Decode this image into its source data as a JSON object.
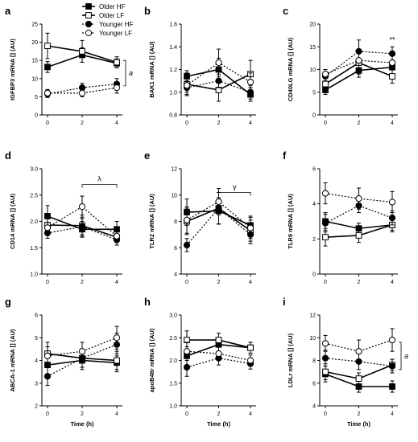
{
  "legend": [
    {
      "name": "Older HF",
      "marker": "square",
      "fill": "#000000",
      "dash": false
    },
    {
      "name": "Older LF",
      "marker": "square",
      "fill": "#ffffff",
      "dash": false
    },
    {
      "name": "Younger HF",
      "marker": "circle",
      "fill": "#000000",
      "dash": true
    },
    {
      "name": "Younger LF",
      "marker": "circle",
      "fill": "#ffffff",
      "dash": true
    }
  ],
  "colors": {
    "ink": "#000000",
    "background": "#ffffff"
  },
  "chart_data": [
    {
      "panel": "a",
      "type": "line",
      "ylabel": "IGFBP3 mRNA [] (AU)",
      "xlabel": "",
      "x": [
        0,
        2,
        4
      ],
      "xticks": [
        "0",
        "2",
        "4"
      ],
      "ylim": [
        0,
        25
      ],
      "yticks": [
        "0",
        "5",
        "10",
        "15",
        "20",
        "25"
      ],
      "series": [
        {
          "name": "Older HF",
          "values": [
            13.2,
            16.5,
            14.2
          ],
          "err": [
            1.5,
            2.0,
            1.2
          ]
        },
        {
          "name": "Older LF",
          "values": [
            19.0,
            17.5,
            14.5
          ],
          "err": [
            3.5,
            3.0,
            1.5
          ]
        },
        {
          "name": "Younger HF",
          "values": [
            5.8,
            7.5,
            8.5
          ],
          "err": [
            1.0,
            1.2,
            1.5
          ]
        },
        {
          "name": "Younger LF",
          "values": [
            6.0,
            6.0,
            7.5
          ],
          "err": [
            1.0,
            1.0,
            1.5
          ]
        }
      ],
      "annotations": [
        {
          "text": "a",
          "type": "right-bracket",
          "y": [
            8,
            15
          ]
        }
      ]
    },
    {
      "panel": "b",
      "type": "line",
      "ylabel": "BAK1 mRNA [] (AU)",
      "xlabel": "",
      "x": [
        0,
        2,
        4
      ],
      "xticks": [
        "0",
        "2",
        "4"
      ],
      "ylim": [
        0.8,
        1.6
      ],
      "yticks": [
        "0.8",
        "1.0",
        "1.2",
        "1.4",
        "1.6"
      ],
      "series": [
        {
          "name": "Older HF",
          "values": [
            1.14,
            1.2,
            0.98
          ],
          "err": [
            0.05,
            0.1,
            0.06
          ]
        },
        {
          "name": "Older LF",
          "values": [
            1.07,
            1.02,
            1.16
          ],
          "err": [
            0.1,
            0.1,
            0.12
          ]
        },
        {
          "name": "Younger HF",
          "values": [
            1.04,
            1.1,
            1.0
          ],
          "err": [
            0.06,
            0.06,
            0.06
          ]
        },
        {
          "name": "Younger LF",
          "values": [
            1.06,
            1.26,
            1.09
          ],
          "err": [
            0.06,
            0.12,
            0.08
          ]
        }
      ],
      "annotations": []
    },
    {
      "panel": "c",
      "type": "line",
      "ylabel": "CD40LG mRNA [] (AU)",
      "xlabel": "",
      "x": [
        0,
        2,
        4
      ],
      "xticks": [
        "0",
        "2",
        "4"
      ],
      "ylim": [
        0,
        20
      ],
      "yticks": [
        "0",
        "5",
        "10",
        "15",
        "20"
      ],
      "series": [
        {
          "name": "Older HF",
          "values": [
            5.5,
            9.8,
            10.5
          ],
          "err": [
            1.0,
            1.5,
            1.5
          ]
        },
        {
          "name": "Older LF",
          "values": [
            6.8,
            11.5,
            8.5
          ],
          "err": [
            1.5,
            2.5,
            1.5
          ]
        },
        {
          "name": "Younger HF",
          "values": [
            8.5,
            14.0,
            13.5
          ],
          "err": [
            1.0,
            2.5,
            1.5
          ]
        },
        {
          "name": "Younger LF",
          "values": [
            9.0,
            12.0,
            11.5
          ],
          "err": [
            1.0,
            2.0,
            1.5
          ]
        }
      ],
      "annotations": [
        {
          "text": "**",
          "type": "label",
          "x": 4,
          "y": 16
        }
      ]
    },
    {
      "panel": "d",
      "type": "line",
      "ylabel": "CD14 mRNA [] (AU)",
      "xlabel": "",
      "x": [
        0,
        2,
        4
      ],
      "xticks": [
        "0",
        "2",
        "4"
      ],
      "ylim": [
        1.0,
        3.0
      ],
      "yticks": [
        "1.0",
        "1.5",
        "2.0",
        "2.5",
        "3.0"
      ],
      "series": [
        {
          "name": "Older HF",
          "values": [
            2.1,
            1.85,
            1.85
          ],
          "err": [
            0.2,
            0.15,
            0.15
          ]
        },
        {
          "name": "Older LF",
          "values": [
            1.93,
            1.92,
            1.7
          ],
          "err": [
            0.15,
            0.2,
            0.1
          ]
        },
        {
          "name": "Younger HF",
          "values": [
            1.78,
            1.9,
            1.65
          ],
          "err": [
            0.1,
            0.15,
            0.1
          ]
        },
        {
          "name": "Younger LF",
          "values": [
            1.88,
            2.28,
            1.72
          ],
          "err": [
            0.1,
            0.2,
            0.1
          ]
        }
      ],
      "annotations": [
        {
          "text": "λ",
          "type": "top-bracket",
          "x": [
            2,
            4
          ],
          "y": 2.7
        }
      ]
    },
    {
      "panel": "e",
      "type": "line",
      "ylabel": "TLR2 mRNA [] (AU)",
      "xlabel": "",
      "x": [
        0,
        2,
        4
      ],
      "xticks": [
        "0",
        "2",
        "4"
      ],
      "ylim": [
        4,
        12
      ],
      "yticks": [
        "4",
        "6",
        "8",
        "10",
        "12"
      ],
      "series": [
        {
          "name": "Older HF",
          "values": [
            8.7,
            8.8,
            7.7
          ],
          "err": [
            1.0,
            1.0,
            0.7
          ]
        },
        {
          "name": "Older LF",
          "values": [
            8.0,
            9.0,
            7.3
          ],
          "err": [
            1.0,
            1.2,
            0.8
          ]
        },
        {
          "name": "Younger HF",
          "values": [
            6.2,
            9.0,
            7.0
          ],
          "err": [
            0.5,
            1.2,
            0.7
          ]
        },
        {
          "name": "Younger LF",
          "values": [
            8.1,
            9.5,
            7.5
          ],
          "err": [
            1.0,
            1.0,
            0.8
          ]
        }
      ],
      "annotations": [
        {
          "text": "γ",
          "type": "top-bracket",
          "x": [
            2,
            4
          ],
          "y": 10.2
        }
      ]
    },
    {
      "panel": "f",
      "type": "line",
      "ylabel": "TLR9 mRNA [] (AU)",
      "xlabel": "",
      "x": [
        0,
        2,
        4
      ],
      "xticks": [
        "0",
        "2",
        "4"
      ],
      "ylim": [
        0,
        6
      ],
      "yticks": [
        "0",
        "2",
        "4",
        "6"
      ],
      "series": [
        {
          "name": "Older HF",
          "values": [
            3.0,
            2.6,
            2.8
          ],
          "err": [
            0.5,
            0.3,
            0.3
          ]
        },
        {
          "name": "Older LF",
          "values": [
            2.1,
            2.2,
            2.8
          ],
          "err": [
            0.5,
            0.4,
            0.4
          ]
        },
        {
          "name": "Younger HF",
          "values": [
            2.9,
            3.9,
            3.2
          ],
          "err": [
            0.5,
            0.4,
            0.4
          ]
        },
        {
          "name": "Younger LF",
          "values": [
            4.6,
            4.3,
            4.1
          ],
          "err": [
            0.6,
            0.6,
            0.6
          ]
        }
      ],
      "annotations": []
    },
    {
      "panel": "g",
      "type": "line",
      "ylabel": "ABCA-1 mRNA [] (AU)",
      "xlabel": "Time (h)",
      "x": [
        0,
        2,
        4
      ],
      "xticks": [
        "0",
        "2",
        "4"
      ],
      "ylim": [
        2,
        6
      ],
      "yticks": [
        "2",
        "3",
        "4",
        "5",
        "6"
      ],
      "series": [
        {
          "name": "Older HF",
          "values": [
            3.8,
            4.0,
            3.9
          ],
          "err": [
            0.4,
            0.4,
            0.4
          ]
        },
        {
          "name": "Older LF",
          "values": [
            4.3,
            4.1,
            4.0
          ],
          "err": [
            0.5,
            0.4,
            0.4
          ]
        },
        {
          "name": "Younger HF",
          "values": [
            3.3,
            4.1,
            4.7
          ],
          "err": [
            0.4,
            0.4,
            0.5
          ]
        },
        {
          "name": "Younger LF",
          "values": [
            4.2,
            4.4,
            5.0
          ],
          "err": [
            0.4,
            0.4,
            0.5
          ]
        }
      ],
      "annotations": []
    },
    {
      "panel": "h",
      "type": "line",
      "ylabel": "apoB48r mRNA [] (AU)",
      "xlabel": "Time (h)",
      "x": [
        0,
        2,
        4
      ],
      "xticks": [
        "0",
        "2",
        "4"
      ],
      "ylim": [
        1.0,
        3.0
      ],
      "yticks": [
        "1.0",
        "1.5",
        "2.0",
        "2.5",
        "3.0"
      ],
      "series": [
        {
          "name": "Older HF",
          "values": [
            2.1,
            2.35,
            2.28
          ],
          "err": [
            0.2,
            0.15,
            0.12
          ]
        },
        {
          "name": "Older LF",
          "values": [
            2.45,
            2.45,
            2.28
          ],
          "err": [
            0.2,
            0.15,
            0.12
          ]
        },
        {
          "name": "Younger HF",
          "values": [
            1.85,
            2.05,
            1.93
          ],
          "err": [
            0.2,
            0.15,
            0.12
          ]
        },
        {
          "name": "Younger LF",
          "values": [
            2.2,
            2.15,
            2.0
          ],
          "err": [
            0.2,
            0.15,
            0.12
          ]
        }
      ],
      "annotations": []
    },
    {
      "panel": "i",
      "type": "line",
      "ylabel": "LDLr mRNA [] (AU)",
      "xlabel": "Time (h)",
      "x": [
        0,
        2,
        4
      ],
      "xticks": [
        "0",
        "2",
        "4"
      ],
      "ylim": [
        4,
        12
      ],
      "yticks": [
        "4",
        "6",
        "8",
        "10",
        "12"
      ],
      "series": [
        {
          "name": "Older HF",
          "values": [
            6.8,
            5.7,
            5.7
          ],
          "err": [
            0.7,
            0.5,
            0.5
          ]
        },
        {
          "name": "Older LF",
          "values": [
            7.0,
            6.4,
            7.6
          ],
          "err": [
            0.7,
            0.5,
            0.5
          ]
        },
        {
          "name": "Younger HF",
          "values": [
            8.2,
            7.9,
            7.5
          ],
          "err": [
            0.7,
            0.7,
            0.6
          ]
        },
        {
          "name": "Younger LF",
          "values": [
            9.5,
            8.8,
            9.8
          ],
          "err": [
            0.7,
            1.0,
            1.0
          ]
        }
      ],
      "annotations": [
        {
          "text": "a",
          "type": "right-bracket",
          "y": [
            7.2,
            9.6
          ]
        }
      ]
    }
  ]
}
